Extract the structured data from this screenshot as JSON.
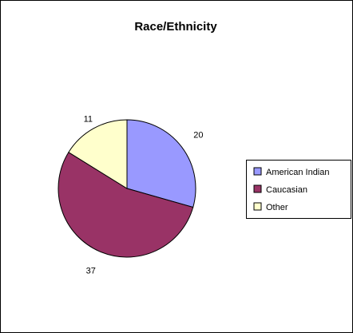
{
  "chart_data": {
    "type": "pie",
    "title": "Race/Ethnicity",
    "categories": [
      "American Indian",
      "Caucasian",
      "Other"
    ],
    "values": [
      20,
      37,
      11
    ],
    "colors": [
      "#9999ff",
      "#993366",
      "#ffffcc"
    ],
    "legend": "right",
    "start": "top, clockwise"
  }
}
